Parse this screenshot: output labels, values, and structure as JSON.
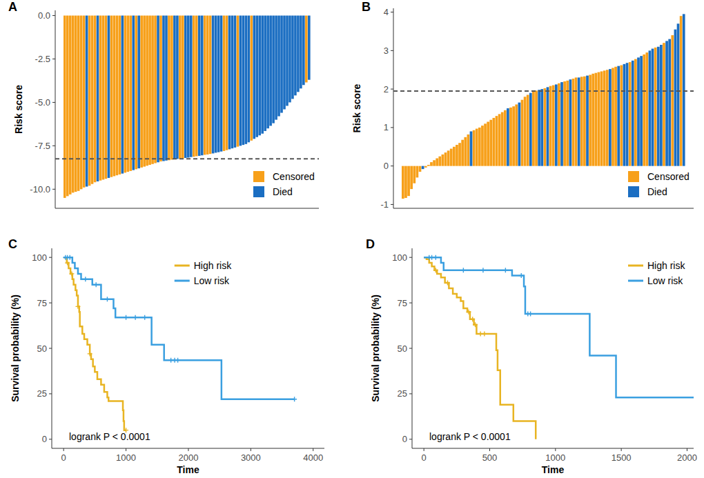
{
  "chart_data": [
    {
      "type": "bar",
      "title": "A",
      "y_label": "Risk score",
      "ylim": [
        -11.1,
        0.3
      ],
      "yticks": [
        {
          "value": -10,
          "label": "-10.0"
        },
        {
          "value": -7.5,
          "label": "-7.5"
        },
        {
          "value": -5,
          "label": "-5.0"
        },
        {
          "value": -2.5,
          "label": "-2.5"
        },
        {
          "value": 0,
          "label": "0.0"
        }
      ],
      "grid": false,
      "legend": "bottom-right",
      "tick_labels": "y",
      "cutoff": -8.25,
      "series": [
        {
          "name": "Censored",
          "color": "#f7a01a",
          "values": [
            -10.5,
            -10.4,
            -10.3,
            -10.2,
            -10.15,
            -10.1,
            -10.0,
            -9.9,
            null,
            -9.8,
            -9.7,
            -9.6,
            null,
            -9.5,
            -9.45,
            -9.4,
            null,
            -9.3,
            -9.25,
            -9.2,
            -9.15,
            null,
            -9.05,
            -9.0,
            -8.95,
            null,
            -8.85,
            null,
            -8.75,
            -8.7,
            -8.65,
            -8.6,
            -8.55,
            -8.5,
            null,
            -8.4,
            null,
            null,
            -8.33,
            -8.3,
            null,
            null,
            -8.25,
            -8.23,
            null,
            null,
            null,
            -8.13,
            -8.1,
            null,
            null,
            -8.02,
            -8.0,
            -7.97,
            null,
            null,
            null,
            null,
            -7.8,
            -7.75,
            null,
            null,
            null,
            -7.55,
            null,
            null,
            null,
            null,
            -7.2,
            null,
            null,
            null,
            null,
            null,
            null,
            null,
            null,
            null,
            null,
            null,
            null,
            null,
            null,
            null,
            null,
            null,
            null,
            null,
            -3.85,
            null
          ]
        },
        {
          "name": "Died",
          "color": "#1b6ec2",
          "values": [
            null,
            null,
            null,
            null,
            null,
            null,
            null,
            null,
            -9.85,
            null,
            null,
            null,
            -9.55,
            null,
            null,
            null,
            -9.35,
            null,
            null,
            null,
            null,
            -9.1,
            null,
            null,
            null,
            -8.9,
            null,
            -8.8,
            null,
            null,
            null,
            null,
            null,
            null,
            -8.45,
            null,
            -8.38,
            -8.35,
            null,
            null,
            -8.28,
            -8.26,
            null,
            null,
            -8.2,
            -8.18,
            -8.15,
            null,
            null,
            -8.08,
            -8.05,
            null,
            null,
            null,
            -7.94,
            -7.9,
            -7.87,
            -7.83,
            null,
            null,
            -7.7,
            -7.65,
            -7.6,
            null,
            -7.5,
            -7.45,
            -7.4,
            -7.3,
            null,
            -7.1,
            -7.0,
            -6.9,
            -6.8,
            -6.65,
            -6.5,
            -6.35,
            -6.2,
            -6.0,
            -5.8,
            -5.6,
            -5.4,
            -5.2,
            -5.0,
            -4.8,
            -4.6,
            -4.4,
            -4.2,
            -4.0,
            null,
            -3.7
          ]
        }
      ]
    },
    {
      "type": "bar",
      "title": "B",
      "y_label": "Risk score",
      "ylim": [
        -1.1,
        4.1
      ],
      "yticks": [
        -1,
        0,
        1,
        2,
        3,
        4
      ],
      "grid": false,
      "legend": "bottom-right",
      "tick_labels": "y",
      "cutoff": 1.95,
      "series": [
        {
          "name": "Censored",
          "color": "#f7a01a",
          "values": [
            -0.85,
            -0.83,
            -0.78,
            -0.6,
            -0.45,
            -0.3,
            -0.15,
            null,
            -0.04,
            0.03,
            0.1,
            0.15,
            0.2,
            0.25,
            0.3,
            0.35,
            0.4,
            0.45,
            0.5,
            0.55,
            0.6,
            0.68,
            0.75,
            0.82,
            null,
            0.93,
            0.97,
            1.0,
            1.05,
            1.1,
            1.15,
            1.2,
            1.25,
            1.3,
            1.35,
            1.4,
            1.45,
            null,
            1.52,
            1.55,
            1.6,
            null,
            1.72,
            1.8,
            1.85,
            null,
            1.94,
            1.96,
            null,
            null,
            2.02,
            null,
            2.08,
            2.1,
            null,
            2.15,
            null,
            2.2,
            2.22,
            null,
            2.27,
            2.3,
            null,
            2.32,
            2.33,
            null,
            2.37,
            2.4,
            2.42,
            2.44,
            2.46,
            2.48,
            2.5,
            null,
            2.55,
            2.58,
            null,
            2.62,
            null,
            null,
            2.7,
            null,
            2.78,
            null,
            null,
            2.9,
            2.95,
            null,
            null,
            3.08,
            null,
            null,
            3.2,
            null,
            null,
            3.4,
            null,
            null,
            3.9,
            null
          ]
        },
        {
          "name": "Died",
          "color": "#1b6ec2",
          "values": [
            null,
            null,
            null,
            null,
            null,
            null,
            null,
            -0.08,
            null,
            null,
            null,
            null,
            null,
            null,
            null,
            null,
            null,
            null,
            null,
            null,
            null,
            null,
            null,
            null,
            0.9,
            null,
            null,
            null,
            null,
            null,
            null,
            null,
            null,
            null,
            null,
            null,
            null,
            1.5,
            null,
            null,
            null,
            1.65,
            null,
            null,
            null,
            1.9,
            null,
            null,
            1.98,
            2.0,
            null,
            2.05,
            null,
            null,
            2.12,
            null,
            2.18,
            null,
            null,
            2.25,
            null,
            null,
            2.3,
            null,
            null,
            2.35,
            null,
            null,
            null,
            null,
            null,
            null,
            null,
            2.52,
            null,
            null,
            2.6,
            null,
            2.65,
            2.68,
            null,
            2.74,
            null,
            2.82,
            2.86,
            null,
            null,
            3.0,
            3.05,
            null,
            3.1,
            3.15,
            null,
            3.25,
            3.3,
            null,
            3.55,
            3.7,
            null,
            3.95
          ]
        }
      ]
    },
    {
      "type": "step",
      "title": "C",
      "x_label": "Time",
      "y_label": "Survival probability (%)",
      "xlim": [
        -190,
        4180
      ],
      "ylim": [
        -5,
        105
      ],
      "xticks": [
        0,
        1000,
        2000,
        3000,
        4000
      ],
      "yticks": [
        0,
        25,
        50,
        75,
        100
      ],
      "grid": false,
      "legend": "top",
      "annotation": "logrank P < 0.0001",
      "series": [
        {
          "name": "High risk",
          "color": "#e8b422",
          "x": [
            0,
            50,
            80,
            110,
            140,
            160,
            190,
            210,
            230,
            250,
            260,
            300,
            330,
            380,
            420,
            440,
            470,
            500,
            540,
            600,
            650,
            700,
            720,
            950,
            960,
            970,
            1000
          ],
          "y": [
            100,
            97,
            94,
            91,
            88,
            85,
            82,
            79,
            73,
            70,
            62,
            58,
            55,
            52,
            47,
            44,
            40,
            37,
            33,
            30,
            26,
            23,
            21,
            16,
            10,
            5,
            5
          ],
          "censored": {
            "x": [
              60,
              130,
              230,
              420,
              1000
            ],
            "y": [
              97,
              91,
              73,
              47,
              5
            ]
          }
        },
        {
          "name": "Low risk",
          "color": "#3a9fe0",
          "x": [
            0,
            140,
            180,
            230,
            280,
            460,
            600,
            800,
            830,
            1410,
            1610,
            2530,
            3700
          ],
          "y": [
            100,
            97,
            94,
            91,
            88,
            85,
            77,
            72,
            67,
            52,
            43.5,
            22,
            22
          ],
          "censored": {
            "x": [
              30,
              60,
              100,
              350,
              520,
              700,
              1000,
              1150,
              1300,
              1720,
              1780,
              1830,
              3700
            ],
            "y": [
              100,
              100,
              100,
              88,
              85,
              77,
              67,
              67,
              67,
              43.5,
              43.5,
              43.5,
              22
            ]
          }
        }
      ]
    },
    {
      "type": "step",
      "title": "D",
      "x_label": "Time",
      "y_label": "Survival probability (%)",
      "xlim": [
        -90,
        2050
      ],
      "ylim": [
        -5,
        105
      ],
      "xticks": [
        0,
        500,
        1000,
        1500,
        2000
      ],
      "yticks": [
        0,
        25,
        50,
        75,
        100
      ],
      "grid": false,
      "legend": "top-right",
      "annotation": "logrank P < 0.0001",
      "series": [
        {
          "name": "High risk",
          "color": "#e8b422",
          "x": [
            0,
            20,
            40,
            60,
            80,
            100,
            130,
            160,
            190,
            220,
            250,
            280,
            300,
            330,
            350,
            380,
            400,
            550,
            560,
            580,
            680,
            850
          ],
          "y": [
            100,
            99,
            97,
            95,
            93,
            91,
            89,
            86,
            83,
            80,
            78,
            76,
            72,
            70,
            66,
            63,
            58,
            49,
            38,
            19,
            10,
            0
          ],
          "censored": {
            "x": [
              90,
              180,
              340,
              370,
              390,
              430,
              460
            ],
            "y": [
              93,
              86,
              70,
              66,
              63,
              58,
              58
            ]
          }
        },
        {
          "name": "Low risk",
          "color": "#3a9fe0",
          "x": [
            0,
            130,
            150,
            670,
            760,
            770,
            1260,
            1460,
            2060
          ],
          "y": [
            100,
            97,
            93,
            90,
            84,
            69,
            46,
            23,
            23
          ],
          "censored": {
            "x": [
              40,
              60,
              90,
              300,
              450,
              620,
              740,
              790,
              810,
              2060
            ],
            "y": [
              100,
              100,
              100,
              93,
              93,
              93,
              90,
              69,
              69,
              23
            ]
          }
        }
      ]
    }
  ]
}
